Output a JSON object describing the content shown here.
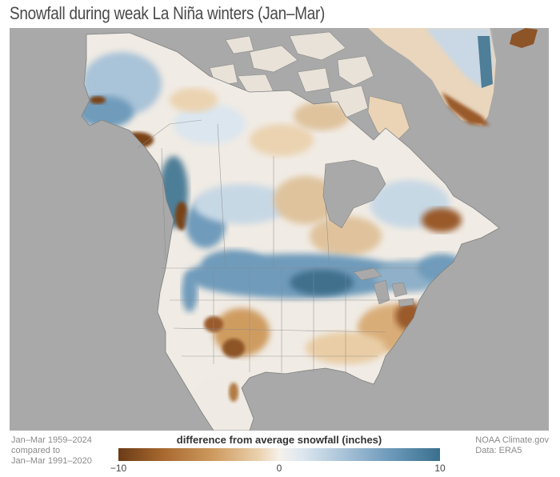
{
  "title": "Snowfall during weak La Niña winters (Jan–Mar)",
  "footer_left": [
    "Jan–Mar 1959–2024",
    "compared to",
    "Jan–Mar 1991–2020"
  ],
  "legend": {
    "title": "difference from average snowfall (inches)",
    "ticks": [
      "−10",
      "0",
      "10"
    ],
    "min": -10,
    "max": 10,
    "colors": {
      "strong_decrease": "#6b3b17",
      "decrease": "#cf9c61",
      "neutral": "#f6f1ea",
      "increase": "#a9c3d8",
      "strong_increase": "#3a6f8e"
    }
  },
  "footer_right": [
    "NOAA Climate.gov",
    "Data: ERA5"
  ],
  "map": {
    "ocean_color": "#a9a9a9",
    "region": "North America"
  }
}
